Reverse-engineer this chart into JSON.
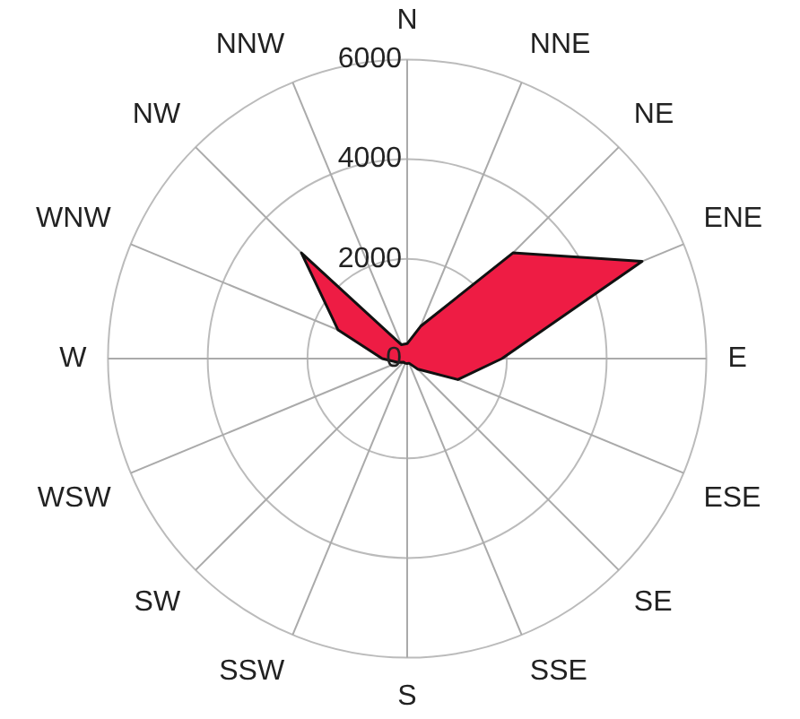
{
  "chart_data": {
    "type": "radar",
    "categories": [
      "N",
      "NNE",
      "NE",
      "ENE",
      "E",
      "ESE",
      "SE",
      "SSE",
      "S",
      "SSW",
      "SW",
      "WSW",
      "W",
      "WNW",
      "NW",
      "NNW"
    ],
    "series": [
      {
        "color": "#ee1c44",
        "values": [
          300,
          700,
          3000,
          5100,
          1900,
          1100,
          300,
          100,
          100,
          100,
          100,
          200,
          500,
          1500,
          3000,
          300
        ]
      }
    ],
    "ylim": [
      0,
      6000
    ],
    "yticks": [
      0,
      2000,
      4000,
      6000
    ],
    "grid": true,
    "legend": false
  }
}
